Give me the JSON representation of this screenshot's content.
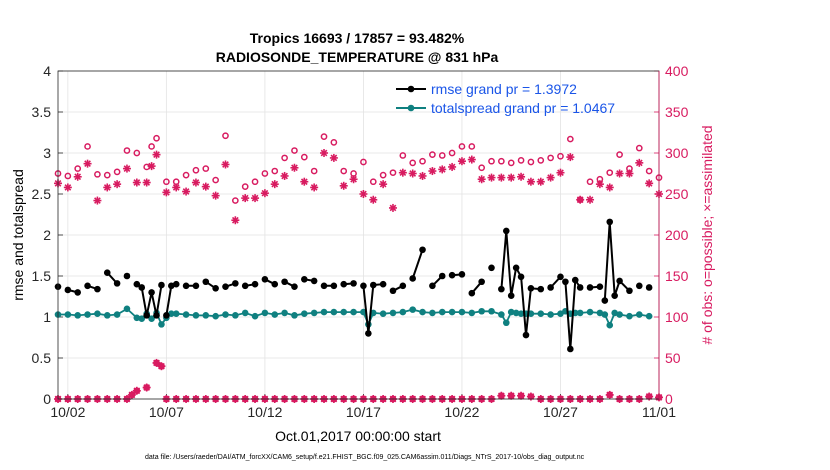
{
  "chart_data": {
    "type": "line",
    "title_line1": "Tropics 16693 / 17857 = 93.482%",
    "title_line2": "RADIOSONDE_TEMPERATURE @ 831 hPa",
    "xlabel": "Oct.01,2017 00:00:00 start",
    "ylabel_left": "rmse and totalspread",
    "ylabel_right": "# of obs: o=possible; ×=assimilated",
    "xlim": [
      1.5,
      32
    ],
    "ylim_left": [
      0,
      4
    ],
    "ylim_right": [
      0,
      400
    ],
    "x_ticks": [
      {
        "x": 2,
        "label": "10/02"
      },
      {
        "x": 7,
        "label": "10/07"
      },
      {
        "x": 12,
        "label": "10/12"
      },
      {
        "x": 17,
        "label": "10/17"
      },
      {
        "x": 22,
        "label": "10/22"
      },
      {
        "x": 27,
        "label": "10/27"
      },
      {
        "x": 32,
        "label": "11/01"
      }
    ],
    "y_ticks_left": [
      "0",
      "0.5",
      "1",
      "1.5",
      "2",
      "2.5",
      "3",
      "3.5",
      "4"
    ],
    "y_ticks_right": [
      "0",
      "50",
      "100",
      "150",
      "200",
      "250",
      "300",
      "350",
      "400"
    ],
    "colors": {
      "rmse": "#000000",
      "spread": "#0f8080",
      "obs": "#d81b60",
      "right_axis": "#d81b60",
      "legend_text": "#1a55e8"
    },
    "series": [
      {
        "name": "rmse",
        "legend": "rmse grand pr = 1.3972",
        "points": [
          [
            1.5,
            1.37
          ],
          [
            2,
            1.33
          ],
          [
            2.5,
            1.3
          ],
          [
            3,
            1.38
          ],
          [
            3.5,
            1.34
          ],
          [
            4,
            1.54
          ],
          [
            4.5,
            1.41
          ],
          [
            5,
            1.5
          ],
          [
            5.5,
            1.4
          ],
          [
            5.75,
            1.36
          ],
          [
            6,
            1.02
          ],
          [
            6.25,
            1.3
          ],
          [
            6.5,
            1.02
          ],
          [
            6.75,
            1.39
          ],
          [
            7,
            1.02
          ],
          [
            7.25,
            1.38
          ],
          [
            7.5,
            1.4
          ],
          [
            8,
            1.38
          ],
          [
            8.5,
            1.38
          ],
          [
            9,
            1.43
          ],
          [
            9.5,
            1.35
          ],
          [
            10,
            1.37
          ],
          [
            10.5,
            1.41
          ],
          [
            11,
            1.38
          ],
          [
            11.5,
            1.4
          ],
          [
            12,
            1.46
          ],
          [
            12.5,
            1.4
          ],
          [
            13,
            1.43
          ],
          [
            13.5,
            1.37
          ],
          [
            14,
            1.46
          ],
          [
            14.5,
            1.44
          ],
          [
            15,
            1.38
          ],
          [
            15.5,
            1.38
          ],
          [
            16,
            1.4
          ],
          [
            16.5,
            1.41
          ],
          [
            17,
            1.38
          ],
          [
            17.25,
            0.8
          ],
          [
            17.5,
            1.39
          ],
          [
            18,
            1.4
          ],
          [
            18.5,
            1.32
          ],
          [
            19,
            1.38
          ],
          [
            19.5,
            1.47
          ],
          [
            20,
            1.82
          ],
          [
            20.5,
            1.38
          ],
          [
            21,
            1.5
          ],
          [
            21.5,
            1.51
          ],
          [
            22,
            1.52
          ],
          [
            22.5,
            1.29
          ],
          [
            23,
            1.43
          ],
          [
            23.5,
            1.6
          ],
          [
            24,
            1.34
          ],
          [
            24.25,
            2.05
          ],
          [
            24.5,
            1.26
          ],
          [
            24.75,
            1.6
          ],
          [
            25,
            1.49
          ],
          [
            25.25,
            0.78
          ],
          [
            25.5,
            1.35
          ],
          [
            26,
            1.34
          ],
          [
            26.5,
            1.36
          ],
          [
            27,
            1.49
          ],
          [
            27.25,
            1.43
          ],
          [
            27.5,
            0.61
          ],
          [
            27.75,
            1.45
          ],
          [
            28,
            1.36
          ],
          [
            28.5,
            1.36
          ],
          [
            29,
            1.37
          ],
          [
            29.25,
            1.2
          ],
          [
            29.5,
            2.16
          ],
          [
            29.75,
            1.26
          ],
          [
            30,
            1.44
          ],
          [
            30.5,
            1.32
          ],
          [
            31,
            1.38
          ],
          [
            31.5,
            1.36
          ]
        ],
        "breaks_after": [
          1.5,
          2.5,
          3.5,
          4.5,
          5,
          6.75,
          7.5,
          8.5,
          9.5,
          10.5,
          11.5,
          12.5,
          13.5,
          14.5,
          15.5,
          16.5,
          18,
          19,
          20,
          21,
          22,
          23,
          23.5,
          26,
          27,
          28,
          29,
          30.5,
          31
        ]
      },
      {
        "name": "totalspread",
        "legend": "totalspread grand pr = 1.0467",
        "points": [
          [
            1.5,
            1.03
          ],
          [
            2,
            1.03
          ],
          [
            2.5,
            1.02
          ],
          [
            3,
            1.03
          ],
          [
            3.5,
            1.04
          ],
          [
            4,
            1.02
          ],
          [
            4.5,
            1.03
          ],
          [
            5,
            1.1
          ],
          [
            5.5,
            0.99
          ],
          [
            5.75,
            0.98
          ],
          [
            6,
            1.04
          ],
          [
            6.25,
            0.98
          ],
          [
            6.5,
            1.05
          ],
          [
            6.75,
            0.91
          ],
          [
            7,
            0.99
          ],
          [
            7.25,
            1.04
          ],
          [
            7.5,
            1.04
          ],
          [
            8,
            1.03
          ],
          [
            8.5,
            1.02
          ],
          [
            9,
            1.02
          ],
          [
            9.5,
            1.01
          ],
          [
            10,
            1.03
          ],
          [
            10.5,
            1.02
          ],
          [
            11,
            1.05
          ],
          [
            11.5,
            1.01
          ],
          [
            12,
            1.05
          ],
          [
            12.5,
            1.03
          ],
          [
            13,
            1.05
          ],
          [
            13.5,
            1.02
          ],
          [
            14,
            1.04
          ],
          [
            14.5,
            1.05
          ],
          [
            15,
            1.06
          ],
          [
            15.5,
            1.06
          ],
          [
            16,
            1.06
          ],
          [
            16.5,
            1.06
          ],
          [
            17,
            1.06
          ],
          [
            17.25,
            0.91
          ],
          [
            17.5,
            1.05
          ],
          [
            18,
            1.04
          ],
          [
            18.5,
            1.05
          ],
          [
            19,
            1.06
          ],
          [
            19.5,
            1.09
          ],
          [
            20,
            1.06
          ],
          [
            20.5,
            1.05
          ],
          [
            21,
            1.06
          ],
          [
            21.5,
            1.06
          ],
          [
            22,
            1.06
          ],
          [
            22.5,
            1.05
          ],
          [
            23,
            1.07
          ],
          [
            23.5,
            1.07
          ],
          [
            24,
            1.03
          ],
          [
            24.25,
            0.93
          ],
          [
            24.5,
            1.06
          ],
          [
            24.75,
            1.05
          ],
          [
            25,
            1.04
          ],
          [
            25.25,
            1.04
          ],
          [
            25.5,
            1.04
          ],
          [
            26,
            1.04
          ],
          [
            26.5,
            1.03
          ],
          [
            27,
            1.04
          ],
          [
            27.25,
            1.07
          ],
          [
            27.5,
            1.04
          ],
          [
            27.75,
            1.05
          ],
          [
            28,
            1.05
          ],
          [
            28.5,
            1.06
          ],
          [
            29,
            1.05
          ],
          [
            29.25,
            1.03
          ],
          [
            29.5,
            0.9
          ],
          [
            29.75,
            1.05
          ],
          [
            30,
            1.03
          ],
          [
            30.5,
            1.01
          ],
          [
            31,
            1.03
          ],
          [
            31.5,
            1.01
          ]
        ]
      }
    ],
    "obs_possible": [
      [
        1.5,
        275
      ],
      [
        2,
        272
      ],
      [
        2.5,
        281
      ],
      [
        3,
        308
      ],
      [
        3.5,
        274
      ],
      [
        4,
        273
      ],
      [
        4.5,
        277
      ],
      [
        5,
        303
      ],
      [
        5.5,
        300
      ],
      [
        6,
        283
      ],
      [
        6.25,
        308
      ],
      [
        6.5,
        318
      ],
      [
        7,
        265
      ],
      [
        7.5,
        265
      ],
      [
        8,
        273
      ],
      [
        8.5,
        279
      ],
      [
        9,
        281
      ],
      [
        9.5,
        267
      ],
      [
        10,
        321
      ],
      [
        10.5,
        242
      ],
      [
        11,
        259
      ],
      [
        11.5,
        265
      ],
      [
        12,
        275
      ],
      [
        12.5,
        278
      ],
      [
        13,
        294
      ],
      [
        13.5,
        303
      ],
      [
        14,
        295
      ],
      [
        14.5,
        278
      ],
      [
        15,
        320
      ],
      [
        15.5,
        313
      ],
      [
        16,
        278
      ],
      [
        16.5,
        275
      ],
      [
        17,
        289
      ],
      [
        17.5,
        265
      ],
      [
        18,
        273
      ],
      [
        18.5,
        276
      ],
      [
        19,
        297
      ],
      [
        19.5,
        288
      ],
      [
        20,
        290
      ],
      [
        20.5,
        298
      ],
      [
        21,
        297
      ],
      [
        21.5,
        300
      ],
      [
        22,
        308
      ],
      [
        22.5,
        308
      ],
      [
        23,
        282
      ],
      [
        23.5,
        290
      ],
      [
        24,
        290
      ],
      [
        24.5,
        288
      ],
      [
        25,
        291
      ],
      [
        25.5,
        289
      ],
      [
        26,
        291
      ],
      [
        26.5,
        294
      ],
      [
        27,
        296
      ],
      [
        27.5,
        317
      ],
      [
        28,
        243
      ],
      [
        28.5,
        265
      ],
      [
        29,
        268
      ],
      [
        29.5,
        276
      ],
      [
        30,
        298
      ],
      [
        30.5,
        281
      ],
      [
        31,
        306
      ],
      [
        31.5,
        278
      ],
      [
        32,
        270
      ]
    ],
    "obs_assimilated": [
      [
        1.5,
        263
      ],
      [
        2,
        258
      ],
      [
        2.5,
        271
      ],
      [
        3,
        287
      ],
      [
        3.5,
        242
      ],
      [
        4,
        258
      ],
      [
        4.5,
        262
      ],
      [
        5,
        281
      ],
      [
        5.5,
        264
      ],
      [
        6,
        264
      ],
      [
        6.25,
        284
      ],
      [
        6.5,
        298
      ],
      [
        7,
        252
      ],
      [
        7.5,
        258
      ],
      [
        8,
        253
      ],
      [
        8.5,
        264
      ],
      [
        9,
        259
      ],
      [
        9.5,
        248
      ],
      [
        10,
        286
      ],
      [
        10.5,
        218
      ],
      [
        11,
        245
      ],
      [
        11.5,
        245
      ],
      [
        12,
        251
      ],
      [
        12.5,
        262
      ],
      [
        13,
        272
      ],
      [
        13.5,
        282
      ],
      [
        14,
        265
      ],
      [
        14.5,
        258
      ],
      [
        15,
        300
      ],
      [
        15.5,
        294
      ],
      [
        16,
        260
      ],
      [
        16.5,
        268
      ],
      [
        17,
        250
      ],
      [
        17.5,
        243
      ],
      [
        18,
        262
      ],
      [
        18.5,
        233
      ],
      [
        19,
        276
      ],
      [
        19.5,
        275
      ],
      [
        20,
        272
      ],
      [
        20.5,
        278
      ],
      [
        21,
        280
      ],
      [
        21.5,
        283
      ],
      [
        22,
        290
      ],
      [
        22.5,
        292
      ],
      [
        23,
        268
      ],
      [
        23.5,
        270
      ],
      [
        24,
        270
      ],
      [
        24.5,
        270
      ],
      [
        25,
        271
      ],
      [
        25.5,
        265
      ],
      [
        26,
        265
      ],
      [
        26.5,
        270
      ],
      [
        27,
        276
      ],
      [
        27.5,
        295
      ],
      [
        28,
        243
      ],
      [
        28.5,
        243
      ],
      [
        29,
        262
      ],
      [
        29.5,
        258
      ],
      [
        30,
        275
      ],
      [
        30.5,
        275
      ],
      [
        31,
        288
      ],
      [
        31.5,
        263
      ],
      [
        32,
        250
      ]
    ],
    "obs_low": [
      [
        1.5,
        0
      ],
      [
        2,
        0
      ],
      [
        2.5,
        0
      ],
      [
        3,
        0
      ],
      [
        3.5,
        0
      ],
      [
        4,
        0
      ],
      [
        4.5,
        0
      ],
      [
        5,
        0
      ],
      [
        5.25,
        5
      ],
      [
        5.5,
        10
      ],
      [
        6,
        14
      ],
      [
        6.5,
        44
      ],
      [
        6.75,
        40
      ],
      [
        7,
        0
      ],
      [
        7.5,
        0
      ],
      [
        8,
        0
      ],
      [
        8.5,
        0
      ],
      [
        9,
        0
      ],
      [
        9.5,
        0
      ],
      [
        10,
        0
      ],
      [
        10.5,
        0
      ],
      [
        11,
        0
      ],
      [
        11.5,
        0
      ],
      [
        12,
        0
      ],
      [
        12.5,
        0
      ],
      [
        13,
        0
      ],
      [
        13.5,
        0
      ],
      [
        14,
        0
      ],
      [
        14.5,
        0
      ],
      [
        15,
        0
      ],
      [
        15.5,
        0
      ],
      [
        16,
        0
      ],
      [
        16.5,
        0
      ],
      [
        17,
        0
      ],
      [
        17.5,
        0
      ],
      [
        18,
        0
      ],
      [
        18.5,
        0
      ],
      [
        19,
        0
      ],
      [
        19.5,
        0
      ],
      [
        20,
        0
      ],
      [
        20.5,
        0
      ],
      [
        21,
        0
      ],
      [
        21.5,
        0
      ],
      [
        22,
        0
      ],
      [
        22.5,
        0
      ],
      [
        23,
        0
      ],
      [
        23.5,
        0
      ],
      [
        24,
        4
      ],
      [
        24.5,
        4
      ],
      [
        25,
        4
      ],
      [
        25.5,
        3
      ],
      [
        26,
        0
      ],
      [
        26.5,
        0
      ],
      [
        27,
        0
      ],
      [
        27.5,
        0
      ],
      [
        28,
        0
      ],
      [
        28.5,
        0
      ],
      [
        29,
        0
      ],
      [
        29.5,
        5
      ],
      [
        30,
        0
      ],
      [
        30.5,
        0
      ],
      [
        31,
        0
      ],
      [
        31.5,
        3
      ],
      [
        32,
        2
      ]
    ],
    "footnote": "data file: /Users/raeder/DAI/ATM_forcXX/CAM6_setup/f.e21.FHIST_BGC.f09_025.CAM6assim.011/Diags_NTrS_2017-10/obs_diag_output.nc"
  }
}
